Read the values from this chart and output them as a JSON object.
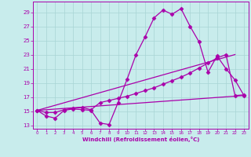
{
  "xlabel": "Windchill (Refroidissement éolien,°C)",
  "bg_color": "#c8ecec",
  "grid_color": "#a8d4d4",
  "line_color": "#aa00aa",
  "xlim": [
    -0.5,
    23.5
  ],
  "ylim": [
    12.5,
    30.5
  ],
  "xticks": [
    0,
    1,
    2,
    3,
    4,
    5,
    6,
    7,
    8,
    9,
    10,
    11,
    12,
    13,
    14,
    15,
    16,
    17,
    18,
    19,
    20,
    21,
    22,
    23
  ],
  "yticks": [
    13,
    15,
    17,
    19,
    21,
    23,
    25,
    27,
    29
  ],
  "series": [
    {
      "x": [
        0,
        1,
        2,
        3,
        4,
        5,
        6,
        7,
        8,
        9,
        10,
        11,
        12,
        13,
        14,
        15,
        16,
        17,
        18,
        19,
        20,
        21,
        22,
        23
      ],
      "y": [
        15.1,
        14.3,
        14.0,
        15.1,
        15.3,
        15.2,
        15.1,
        13.3,
        13.1,
        16.2,
        19.5,
        23.0,
        25.5,
        28.2,
        29.3,
        28.7,
        29.5,
        27.0,
        24.8,
        20.5,
        22.8,
        21.0,
        19.4,
        17.2
      ],
      "marker": "D",
      "markersize": 2.5,
      "lw": 0.9
    },
    {
      "x": [
        0,
        1,
        2,
        3,
        4,
        5,
        6,
        7,
        8,
        9,
        10,
        11,
        12,
        13,
        14,
        15,
        16,
        17,
        18,
        19,
        20,
        21,
        22,
        23
      ],
      "y": [
        15.1,
        14.8,
        14.8,
        15.2,
        15.4,
        15.5,
        15.2,
        16.2,
        16.5,
        16.8,
        17.1,
        17.5,
        17.9,
        18.3,
        18.8,
        19.3,
        19.8,
        20.4,
        21.1,
        21.8,
        22.5,
        23.0,
        17.2,
        17.3
      ],
      "marker": "D",
      "markersize": 2.5,
      "lw": 0.9
    },
    {
      "x": [
        0,
        23
      ],
      "y": [
        15.1,
        17.2
      ],
      "marker": null,
      "lw": 0.9
    },
    {
      "x": [
        0,
        22
      ],
      "y": [
        15.1,
        23.0
      ],
      "marker": null,
      "lw": 0.9
    }
  ]
}
